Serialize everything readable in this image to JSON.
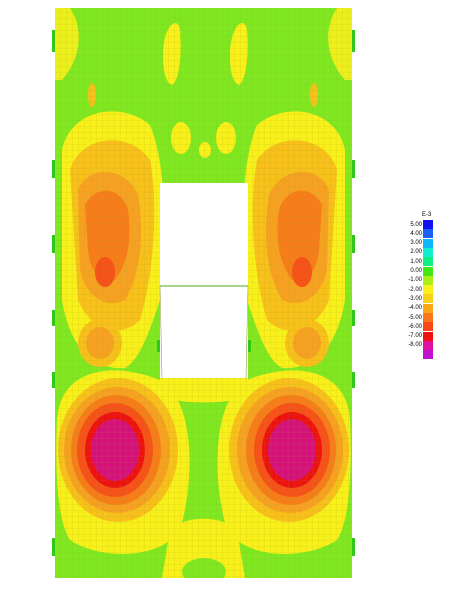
{
  "plot": {
    "description_colors": {
      "background": "#ffffff",
      "green": "#7fe81f",
      "yellow": "#f8f018",
      "light_orange": "#f8c018",
      "orange": "#f8a020",
      "dark_orange": "#f87c18",
      "red_orange": "#f85018",
      "red": "#f01010",
      "magenta": "#d8107c",
      "mesh_line": "#9aa04a"
    }
  },
  "legend": {
    "exponent_label": "E-3",
    "entries": [
      {
        "label": "5.00",
        "color": "#1010f0"
      },
      {
        "label": "4.00",
        "color": "#1860f8"
      },
      {
        "label": "3.00",
        "color": "#10b8f8"
      },
      {
        "label": "2.00",
        "color": "#10f0d0"
      },
      {
        "label": "1.00",
        "color": "#10f080"
      },
      {
        "label": "0.00",
        "color": "#40e818"
      },
      {
        "label": "-1.00",
        "color": "#a8f018"
      },
      {
        "label": "-2.00",
        "color": "#f8f018"
      },
      {
        "label": "-3.00",
        "color": "#f8d018"
      },
      {
        "label": "-4.00",
        "color": "#f8a818"
      },
      {
        "label": "-5.00",
        "color": "#f87818"
      },
      {
        "label": "-6.00",
        "color": "#f84818"
      },
      {
        "label": "-7.00",
        "color": "#f01010"
      },
      {
        "label": "-8.00",
        "color": "#e010a0"
      },
      {
        "label": "",
        "color": "#c010d0"
      }
    ]
  }
}
